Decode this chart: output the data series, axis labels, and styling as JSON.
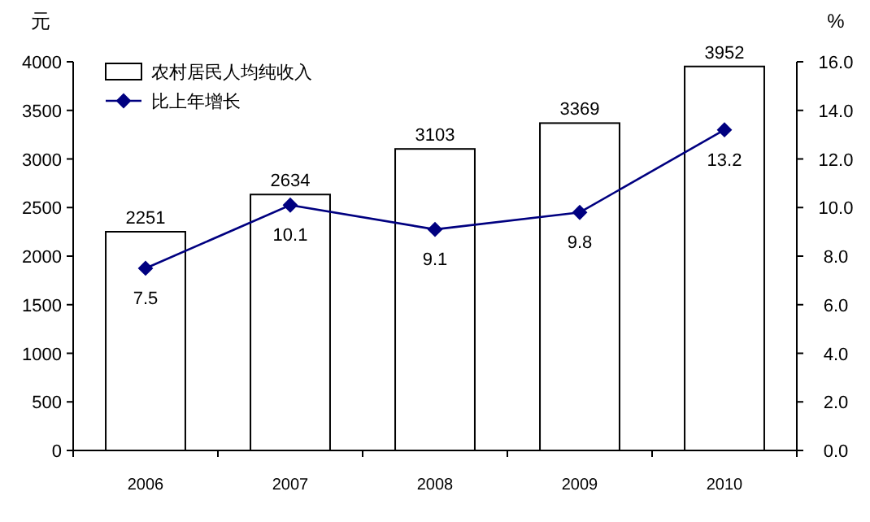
{
  "chart_data": {
    "type": "bar",
    "ylabel": "元",
    "y2label": "%",
    "categories": [
      "2006",
      "2007",
      "2008",
      "2009",
      "2010"
    ],
    "series": [
      {
        "name": "农村居民人均纯收入",
        "color": "#ffffff",
        "values": [
          2251,
          2634,
          3103,
          3369,
          3952
        ]
      },
      {
        "name": "比上年增长",
        "type": "line",
        "axis": "y2",
        "color": "#000080",
        "values": [
          7.5,
          10.1,
          9.1,
          9.8,
          13.2
        ]
      }
    ],
    "ylim": [
      0,
      4000
    ],
    "yticks": [
      0,
      500,
      1000,
      1500,
      2000,
      2500,
      3000,
      3500,
      4000
    ],
    "y2lim": [
      0,
      16
    ],
    "y2ticks": [
      {
        "value": 0,
        "label": "0.0"
      },
      {
        "value": 2,
        "label": "2.0"
      },
      {
        "value": 4,
        "label": "4.0"
      },
      {
        "value": 6,
        "label": "6.0"
      },
      {
        "value": 8,
        "label": "8.0"
      },
      {
        "value": 10,
        "label": "10.0"
      },
      {
        "value": 12,
        "label": "12.0"
      },
      {
        "value": 14,
        "label": "14.0"
      },
      {
        "value": 16,
        "label": "16.0"
      }
    ],
    "marker": "diamond",
    "line_style": "solid",
    "data_labels": true,
    "legend": "top left",
    "grid": false
  }
}
